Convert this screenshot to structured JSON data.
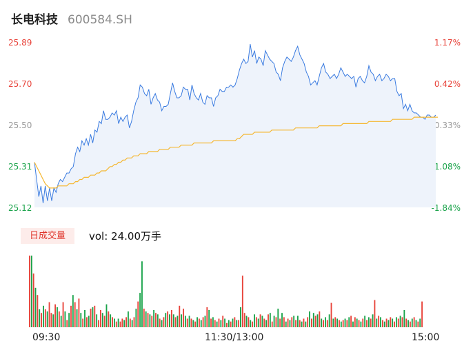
{
  "header": {
    "name": "长电科技",
    "code": "600584.SH"
  },
  "colors": {
    "up": "#e8433a",
    "down": "#1aa34a",
    "flat": "#999999",
    "price_line": "#3a7be0",
    "avg_line": "#f5b731",
    "area_fill": "#eef3fb"
  },
  "y_axis": {
    "left_labels": [
      "25.89",
      "25.70",
      "25.50",
      "25.31",
      "25.12"
    ],
    "right_labels": [
      "1.17%",
      "0.42%",
      "-0.33%",
      "-1.08%",
      "-1.84%"
    ]
  },
  "volume": {
    "tab_label": "日成交量",
    "text": "vol: 24.00万手"
  },
  "x_axis": {
    "labels": [
      "09:30",
      "11:30/13:00",
      "15:00"
    ]
  },
  "chart_data": [
    {
      "type": "line",
      "x_ticks": [
        "09:30",
        "11:30/13:00",
        "15:00"
      ],
      "ylim": [
        25.12,
        25.89
      ],
      "series": [
        {
          "price": [
            25.33,
            25.25,
            25.17,
            25.22,
            25.14,
            25.22,
            25.15,
            25.21,
            25.15,
            25.21,
            25.19,
            25.23,
            25.25,
            25.24,
            25.26,
            25.28,
            25.28,
            25.3,
            25.31,
            25.37,
            25.4,
            25.38,
            25.43,
            25.41,
            25.44,
            25.41,
            25.46,
            25.42,
            25.48,
            25.47,
            25.52,
            25.51,
            25.57,
            25.53,
            25.53,
            25.54,
            25.56,
            25.55,
            25.57,
            25.51,
            25.54,
            25.52,
            25.54,
            25.55,
            25.49,
            25.52,
            25.57,
            25.61,
            25.63,
            25.69,
            25.68,
            25.65,
            25.64,
            25.67,
            25.6,
            25.63,
            25.65,
            25.62,
            25.61,
            25.57,
            25.59,
            25.59,
            25.6,
            25.65,
            25.7,
            25.66,
            25.63,
            25.63,
            25.64,
            25.68,
            25.67,
            25.67,
            25.62,
            25.69,
            25.65,
            25.63,
            25.62,
            25.65,
            25.61,
            25.6,
            25.64,
            25.63,
            25.63,
            25.59,
            25.63,
            25.64,
            25.67,
            25.66,
            25.66,
            25.68,
            25.68,
            25.69,
            25.68,
            25.69,
            25.72,
            25.76,
            25.79,
            25.81,
            25.79,
            25.8,
            25.88,
            25.82,
            25.85,
            25.79,
            25.82,
            25.81,
            25.78,
            25.85,
            25.83,
            25.81,
            25.8,
            25.79,
            25.75,
            25.74,
            25.71,
            25.77,
            25.8,
            25.82,
            25.81,
            25.8,
            25.82,
            25.85,
            25.87,
            25.83,
            25.81,
            25.79,
            25.75,
            25.73,
            25.69,
            25.7,
            25.71,
            25.69,
            25.73,
            25.77,
            25.79,
            25.75,
            25.74,
            25.72,
            25.73,
            25.74,
            25.72,
            25.74,
            25.77,
            25.75,
            25.73,
            25.74,
            25.73,
            25.72,
            25.73,
            25.68,
            25.72,
            25.73,
            25.71,
            25.7,
            25.73,
            25.78,
            25.75,
            25.74,
            25.71,
            25.73,
            25.74,
            25.71,
            25.72,
            25.74,
            25.73,
            25.71,
            25.72,
            25.72,
            25.66,
            25.64,
            25.65,
            25.58,
            25.6,
            25.57,
            25.6,
            25.57,
            25.56,
            25.56,
            25.55,
            25.54,
            25.54,
            25.53,
            25.55,
            25.55,
            25.54,
            25.54,
            25.55
          ],
          "name": ""
        },
        {
          "avg": [
            25.33,
            25.31,
            25.29,
            25.27,
            25.25,
            25.23,
            25.22,
            25.21,
            25.21,
            25.21,
            25.21,
            25.22,
            25.22,
            25.22,
            25.22,
            25.22,
            25.23,
            25.23,
            25.23,
            25.24,
            25.24,
            25.25,
            25.25,
            25.26,
            25.26,
            25.26,
            25.27,
            25.27,
            25.27,
            25.28,
            25.28,
            25.29,
            25.29,
            25.29,
            25.3,
            25.31,
            25.31,
            25.32,
            25.32,
            25.33,
            25.33,
            25.34,
            25.34,
            25.35,
            25.35,
            25.35,
            25.36,
            25.36,
            25.36,
            25.37,
            25.37,
            25.37,
            25.37,
            25.38,
            25.38,
            25.38,
            25.38,
            25.38,
            25.39,
            25.39,
            25.39,
            25.39,
            25.39,
            25.4,
            25.4,
            25.4,
            25.4,
            25.4,
            25.41,
            25.41,
            25.41,
            25.41,
            25.41,
            25.41,
            25.42,
            25.42,
            25.42,
            25.42,
            25.42,
            25.42,
            25.42,
            25.42,
            25.42,
            25.43,
            25.43,
            25.43,
            25.43,
            25.43,
            25.43,
            25.43,
            25.43,
            25.43,
            25.43,
            25.43,
            25.44,
            25.44,
            25.45,
            25.46,
            25.46,
            25.46,
            25.46,
            25.46,
            25.47,
            25.47,
            25.47,
            25.47,
            25.47,
            25.47,
            25.47,
            25.47,
            25.48,
            25.48,
            25.48,
            25.48,
            25.48,
            25.48,
            25.48,
            25.48,
            25.48,
            25.48,
            25.48,
            25.49,
            25.49,
            25.49,
            25.49,
            25.49,
            25.49,
            25.49,
            25.49,
            25.49,
            25.49,
            25.49,
            25.5,
            25.5,
            25.5,
            25.5,
            25.5,
            25.5,
            25.5,
            25.5,
            25.5,
            25.5,
            25.5,
            25.51,
            25.51,
            25.51,
            25.51,
            25.51,
            25.51,
            25.51,
            25.51,
            25.51,
            25.51,
            25.51,
            25.51,
            25.52,
            25.52,
            25.52,
            25.52,
            25.52,
            25.52,
            25.52,
            25.52,
            25.52,
            25.52,
            25.52,
            25.53,
            25.53,
            25.53,
            25.53,
            25.53,
            25.53,
            25.53,
            25.53,
            25.53,
            25.53,
            25.54,
            25.54,
            25.54,
            25.54,
            25.54,
            25.54,
            25.54,
            25.54,
            25.54,
            25.54,
            25.54,
            25.54
          ],
          "name": ""
        }
      ]
    },
    {
      "type": "bar",
      "volumes": [
        100,
        100,
        75,
        55,
        45,
        25,
        20,
        30,
        25,
        22,
        35,
        20,
        18,
        32,
        28,
        22,
        16,
        35,
        22,
        10,
        20,
        30,
        45,
        35,
        25,
        40,
        20,
        12,
        24,
        14,
        16,
        26,
        28,
        30,
        18,
        10,
        24,
        20,
        16,
        32,
        22,
        18,
        14,
        12,
        8,
        12,
        8,
        12,
        10,
        14,
        22,
        12,
        10,
        14,
        26,
        36,
        48,
        92,
        26,
        22,
        20,
        18,
        16,
        24,
        20,
        18,
        12,
        10,
        14,
        20,
        22,
        18,
        24,
        18,
        14,
        16,
        30,
        18,
        26,
        16,
        12,
        16,
        12,
        10,
        8,
        14,
        12,
        10,
        14,
        16,
        28,
        24,
        12,
        14,
        10,
        8,
        12,
        10,
        16,
        12,
        6,
        10,
        8,
        12,
        14,
        10,
        10,
        28,
        72,
        20,
        16,
        14,
        10,
        8,
        18,
        14,
        12,
        18,
        16,
        12,
        10,
        18,
        20,
        8,
        16,
        14,
        26,
        12,
        20,
        14,
        8,
        12,
        10,
        14,
        16,
        10,
        16,
        10,
        8,
        12,
        8,
        14,
        22,
        12,
        20,
        16,
        18,
        22,
        12,
        10,
        14,
        10,
        18,
        34,
        12,
        14,
        12,
        10,
        8,
        10,
        12,
        10,
        14,
        16,
        8,
        14,
        12,
        10,
        8,
        12,
        16,
        10,
        14,
        12,
        18,
        38,
        12,
        16,
        14,
        10,
        8,
        12,
        10,
        14,
        12,
        8,
        14,
        12,
        16,
        14,
        24,
        12,
        10,
        8,
        12,
        14,
        10,
        8,
        12,
        36
      ],
      "colors": [
        "up",
        "down",
        "up",
        "down",
        "up",
        "down",
        "up",
        "down",
        "up",
        "down",
        "up",
        "up",
        "down",
        "up",
        "down",
        "up",
        "down",
        "up",
        "down",
        "up",
        "down",
        "up",
        "down",
        "up",
        "down",
        "up",
        "down",
        "up",
        "down",
        "up",
        "down",
        "up",
        "down",
        "up",
        "down",
        "up",
        "up",
        "down",
        "up",
        "down",
        "up",
        "down",
        "up",
        "down",
        "up",
        "down",
        "up",
        "up",
        "down",
        "up",
        "down",
        "up",
        "down",
        "up",
        "down",
        "up",
        "down",
        "down",
        "up",
        "down",
        "up",
        "down",
        "up",
        "down",
        "up",
        "down",
        "up",
        "down",
        "up",
        "down",
        "up",
        "down",
        "up",
        "down",
        "up",
        "down",
        "up",
        "down",
        "up",
        "down",
        "up",
        "down",
        "up",
        "down",
        "up",
        "down",
        "up",
        "down",
        "up",
        "down",
        "up",
        "down",
        "up",
        "down",
        "up",
        "down",
        "up",
        "down",
        "up",
        "down",
        "up",
        "down",
        "up",
        "down",
        "up",
        "down",
        "up",
        "down",
        "up",
        "up",
        "down",
        "up",
        "down",
        "up",
        "down",
        "up",
        "down",
        "up",
        "down",
        "up",
        "down",
        "up",
        "down",
        "up",
        "down",
        "up",
        "down",
        "up",
        "down",
        "up",
        "down",
        "up",
        "down",
        "up",
        "down",
        "up",
        "down",
        "up",
        "down",
        "up",
        "down",
        "up",
        "down",
        "up",
        "down",
        "up",
        "down",
        "up",
        "down",
        "up",
        "down",
        "up",
        "down",
        "up",
        "down",
        "up",
        "down",
        "up",
        "down",
        "up",
        "down",
        "up",
        "down",
        "up",
        "down",
        "up",
        "down",
        "up",
        "down",
        "up",
        "down",
        "up",
        "down",
        "up",
        "down",
        "up",
        "down",
        "up",
        "down",
        "up",
        "down",
        "up",
        "down",
        "up",
        "down",
        "up",
        "down",
        "up",
        "down",
        "up",
        "down",
        "up",
        "down",
        "up",
        "down",
        "up",
        "down",
        "up",
        "down",
        "up",
        "down",
        "up",
        "down",
        "up",
        "down",
        "up",
        "down",
        "up"
      ],
      "name": ""
    }
  ]
}
